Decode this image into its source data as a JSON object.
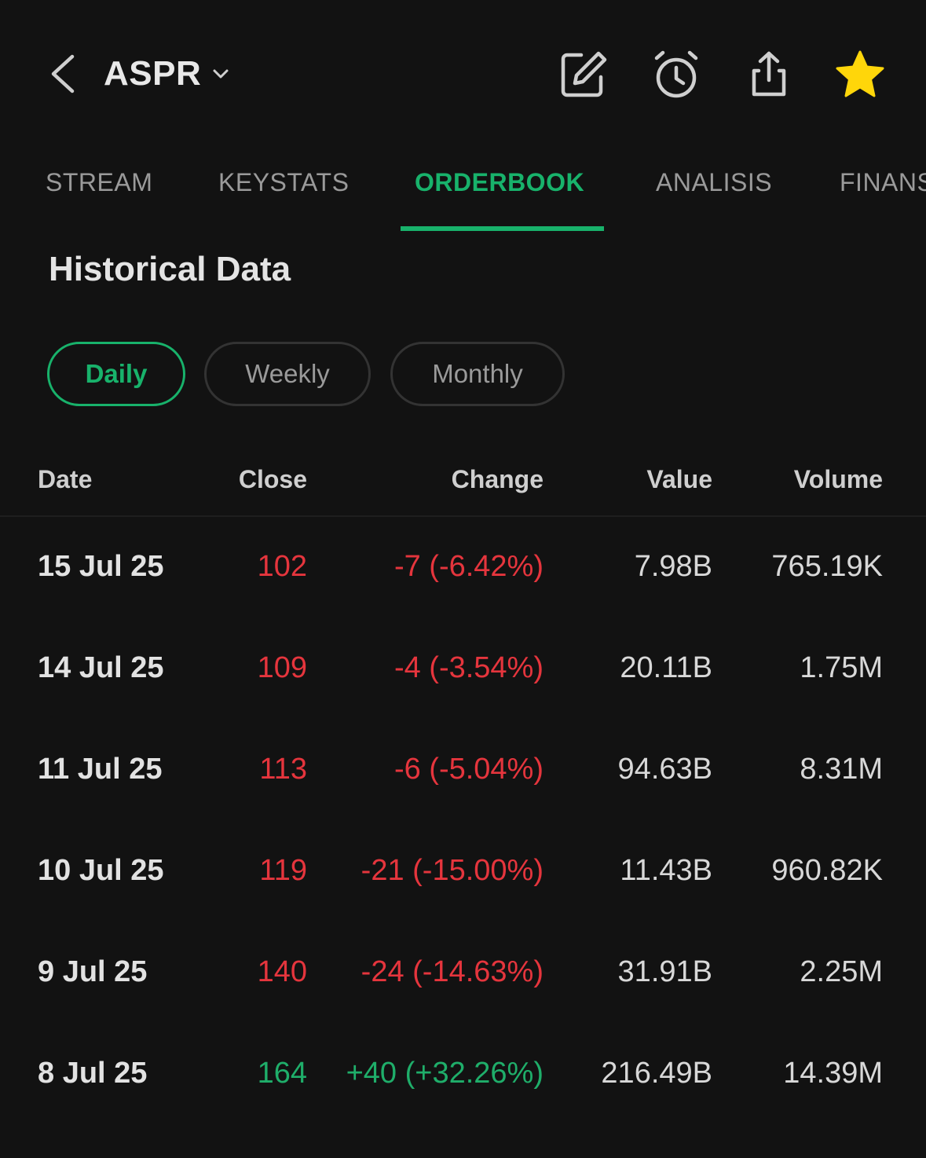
{
  "header": {
    "ticker": "ASPR",
    "icons": [
      "back-chevron-icon",
      "edit-icon",
      "alarm-icon",
      "share-icon",
      "star-icon"
    ],
    "star_color": "#ffd60a"
  },
  "tabs": [
    {
      "label": "STREAM",
      "active": false
    },
    {
      "label": "KEYSTATS",
      "active": false
    },
    {
      "label": "ORDERBOOK",
      "active": true
    },
    {
      "label": "ANALISIS",
      "active": false
    },
    {
      "label": "FINANS",
      "active": false
    }
  ],
  "section": {
    "title": "Historical Data"
  },
  "periods": [
    {
      "label": "Daily",
      "active": true
    },
    {
      "label": "Weekly",
      "active": false
    },
    {
      "label": "Monthly",
      "active": false
    }
  ],
  "table": {
    "headers": {
      "date": "Date",
      "close": "Close",
      "change": "Change",
      "value": "Value",
      "volume": "Volume"
    },
    "rows": [
      {
        "date": "15 Jul 25",
        "close": "102",
        "change": "-7 (-6.42%)",
        "value": "7.98B",
        "volume": "765.19K",
        "trend": "neg"
      },
      {
        "date": "14 Jul 25",
        "close": "109",
        "change": "-4 (-3.54%)",
        "value": "20.11B",
        "volume": "1.75M",
        "trend": "neg"
      },
      {
        "date": "11 Jul 25",
        "close": "113",
        "change": "-6 (-5.04%)",
        "value": "94.63B",
        "volume": "8.31M",
        "trend": "neg"
      },
      {
        "date": "10 Jul 25",
        "close": "119",
        "change": "-21 (-15.00%)",
        "value": "11.43B",
        "volume": "960.82K",
        "trend": "neg"
      },
      {
        "date": "9 Jul 25",
        "close": "140",
        "change": "-24 (-14.63%)",
        "value": "31.91B",
        "volume": "2.25M",
        "trend": "neg"
      },
      {
        "date": "8 Jul 25",
        "close": "164",
        "change": "+40 (+32.26%)",
        "value": "216.49B",
        "volume": "14.39M",
        "trend": "pos"
      }
    ]
  },
  "colors": {
    "accent": "#18b26b",
    "negative": "#e5353d",
    "positive": "#1fae6a",
    "background": "#121212"
  }
}
